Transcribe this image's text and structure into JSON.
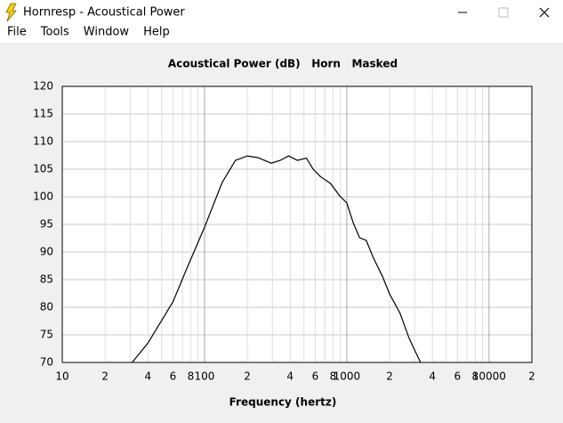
{
  "window": {
    "title": "Hornresp - Acoustical Power",
    "menu": [
      "File",
      "Tools",
      "Window",
      "Help"
    ]
  },
  "chart_data": {
    "type": "line",
    "title": "Acoustical Power (dB)   Horn   Masked",
    "x_label": "Frequency (hertz)",
    "x_log": true,
    "grid": true,
    "xlim": [
      10,
      20000
    ],
    "ylim": [
      70,
      120
    ],
    "xticks": [
      10,
      {
        "value": 20,
        "label": "2"
      },
      {
        "value": 40,
        "label": "4"
      },
      {
        "value": 60,
        "label": "6"
      },
      {
        "value": 80,
        "label": "8"
      },
      100,
      {
        "value": 200,
        "label": "2"
      },
      {
        "value": 400,
        "label": "4"
      },
      {
        "value": 600,
        "label": "6"
      },
      {
        "value": 800,
        "label": "8"
      },
      1000,
      {
        "value": 2000,
        "label": "2"
      },
      {
        "value": 4000,
        "label": "4"
      },
      {
        "value": 6000,
        "label": "6"
      },
      {
        "value": 8000,
        "label": "8"
      },
      10000,
      {
        "value": 20000,
        "label": "2"
      }
    ],
    "xminor": [
      30,
      50,
      70,
      90,
      300,
      500,
      700,
      900,
      3000,
      5000,
      7000,
      9000
    ],
    "yticks": [
      70,
      75,
      80,
      85,
      90,
      95,
      100,
      105,
      110,
      115,
      120
    ],
    "series": [
      {
        "color": "#000000",
        "x": [
          31,
          40,
          60,
          75,
          100,
          133,
          165,
          200,
          237,
          294,
          340,
          390,
          450,
          520,
          580,
          650,
          770,
          890,
          1000,
          1110,
          1230,
          1370,
          1540,
          1780,
          2000,
          2370,
          2740,
          3300
        ],
        "values": [
          70,
          73.5,
          81,
          87,
          94.5,
          102.6,
          106.6,
          107.4,
          107.1,
          106.1,
          106.6,
          107.4,
          106.6,
          107,
          105,
          103.7,
          102.4,
          100.2,
          98.9,
          95.3,
          92.6,
          92.1,
          88.9,
          85.6,
          82.4,
          78.9,
          74.4,
          70
        ]
      }
    ]
  }
}
